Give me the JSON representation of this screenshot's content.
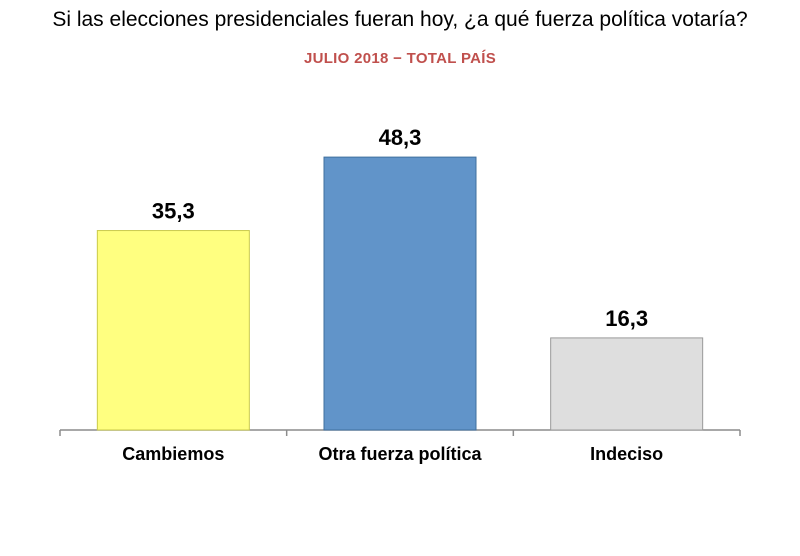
{
  "chart_data": {
    "type": "bar",
    "title": "Si las elecciones presidenciales fueran hoy, ¿a qué fuerza política votaría?",
    "subtitle": "JULIO 2018 − TOTAL PAÍS",
    "categories": [
      "Cambiemos",
      "Otra fuerza política",
      "Indeciso"
    ],
    "values": [
      35.3,
      48.3,
      16.3
    ],
    "value_labels": [
      "35,3",
      "48,3",
      "16,3"
    ],
    "colors": [
      "#ffff80",
      "#6194c9",
      "#dedede"
    ],
    "border_colors": [
      "#c9c94a",
      "#3f6f9e",
      "#9a9a9a"
    ],
    "xlabel": "",
    "ylabel": "",
    "ylim": [
      0,
      50
    ],
    "grid": false,
    "legend": "none"
  }
}
